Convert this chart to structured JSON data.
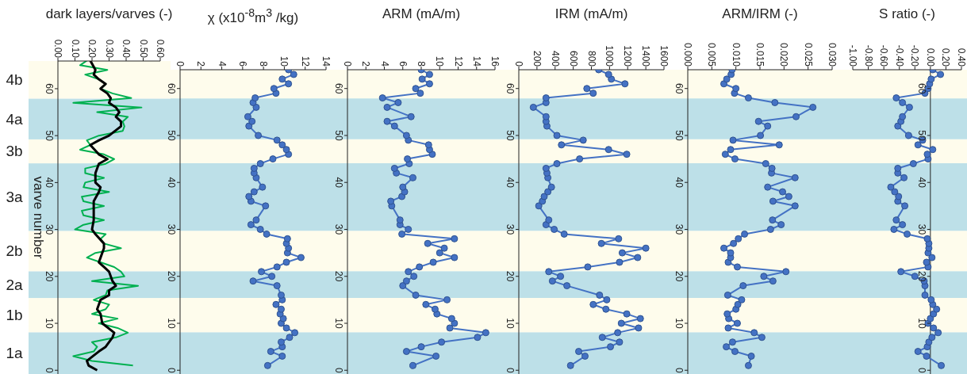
{
  "chart_data": [
    {
      "type": "line",
      "orientation": "horizontal",
      "xlabel": "dark layers/varves (-)",
      "ylabel": "varve number",
      "xlim": [
        0,
        0.6
      ],
      "xticks": [
        {
          "value": 0,
          "label": "0.00"
        },
        {
          "value": 0.1,
          "label": "0.10"
        },
        {
          "value": 0.2,
          "label": "0.20"
        },
        {
          "value": 0.3,
          "label": "0.30"
        },
        {
          "value": 0.4,
          "label": "0.40"
        },
        {
          "value": 0.5,
          "label": "0.50"
        },
        {
          "value": 0.6,
          "label": "0.60"
        }
      ],
      "ylim": [
        -0.8,
        65.9
      ],
      "yticks": [
        0,
        10,
        20,
        30,
        40,
        50,
        60
      ],
      "marker": "none",
      "bands": [
        {
          "axis": "y",
          "from": -0.8,
          "to": 8.1,
          "label": "1a",
          "color": "#bde0e8"
        },
        {
          "axis": "y",
          "from": 8.1,
          "to": 15.4,
          "label": "1b",
          "color": "#fefcec"
        },
        {
          "axis": "y",
          "from": 15.4,
          "to": 21.1,
          "label": "2a",
          "color": "#bde0e8"
        },
        {
          "axis": "y",
          "from": 21.1,
          "to": 29.7,
          "label": "2b",
          "color": "#fefcec"
        },
        {
          "axis": "y",
          "from": 29.7,
          "to": 44.1,
          "label": "3a",
          "color": "#bde0e8"
        },
        {
          "axis": "y",
          "from": 44.1,
          "to": 49.2,
          "label": "3b",
          "color": "#fefcec"
        },
        {
          "axis": "y",
          "from": 49.2,
          "to": 57.9,
          "label": "4a",
          "color": "#bde0e8"
        },
        {
          "axis": "y",
          "from": 57.9,
          "to": 65.9,
          "label": "4b",
          "color": "#fefcec"
        }
      ],
      "series": [
        {
          "color": "#00b050",
          "x": [
            1,
            2,
            3,
            4,
            5,
            6,
            7,
            8,
            9,
            10,
            11,
            12,
            13,
            14,
            15,
            16,
            17,
            18,
            19,
            20,
            21,
            22,
            23,
            24,
            25,
            26,
            27,
            28,
            29,
            30,
            31,
            32,
            33,
            34,
            35,
            36,
            37,
            38,
            39,
            40,
            41,
            42,
            43,
            44,
            45,
            46,
            47,
            48,
            49,
            50,
            51,
            52,
            53,
            54,
            55,
            56,
            57,
            58,
            59,
            60,
            61,
            62,
            63,
            64,
            65,
            66
          ],
          "values": [
            0.44,
            0.2,
            0.09,
            0.21,
            0.23,
            0.2,
            0.34,
            0.41,
            0.35,
            0.24,
            0.35,
            0.2,
            0.28,
            0.3,
            0.21,
            0.28,
            0.29,
            0.47,
            0.2,
            0.39,
            0.37,
            0.33,
            0.25,
            0.17,
            0.22,
            0.37,
            0.27,
            0.25,
            0.28,
            0.1,
            0.15,
            0.27,
            0.15,
            0.14,
            0.27,
            0.15,
            0.14,
            0.3,
            0.15,
            0.16,
            0.27,
            0.16,
            0.16,
            0.28,
            0.33,
            0.27,
            0.13,
            0.19,
            0.17,
            0.24,
            0.38,
            0.39,
            0.38,
            0.41,
            0.23,
            0.49,
            0.09,
            0.43,
            0.32,
            0.25,
            0.28,
            0.24,
            0.16,
            0.29,
            0.13,
            0.17
          ]
        },
        {
          "color": "#000000",
          "x": [
            0,
            1,
            2,
            4,
            5,
            7,
            8,
            10,
            12,
            13,
            15,
            16,
            17,
            18,
            19,
            21,
            22,
            23,
            24,
            26,
            27,
            29,
            30,
            32,
            36,
            38,
            39,
            40,
            42,
            44,
            45,
            46,
            48,
            49,
            50,
            52,
            53,
            54,
            55,
            56,
            57,
            58,
            59,
            60,
            61,
            62,
            63,
            64,
            66
          ],
          "values": [
            0.23,
            0.18,
            0.17,
            0.24,
            0.28,
            0.32,
            0.33,
            0.26,
            0.25,
            0.23,
            0.25,
            0.3,
            0.3,
            0.34,
            0.32,
            0.3,
            0.27,
            0.24,
            0.25,
            0.27,
            0.27,
            0.22,
            0.2,
            0.21,
            0.21,
            0.24,
            0.25,
            0.22,
            0.22,
            0.24,
            0.29,
            0.24,
            0.19,
            0.24,
            0.3,
            0.37,
            0.37,
            0.34,
            0.36,
            0.34,
            0.3,
            0.31,
            0.29,
            0.25,
            0.28,
            0.24,
            0.21,
            0.22,
            0.19
          ]
        }
      ]
    },
    {
      "type": "line",
      "orientation": "horizontal",
      "xlabel": "χ (x10$^{-8}$m$^{3}$ /kg)",
      "xlim": [
        0,
        14
      ],
      "xticks": [
        0,
        2,
        4,
        6,
        8,
        10,
        12,
        14
      ],
      "ylim": [
        -0.8,
        64
      ],
      "yticks": [
        0,
        10,
        20,
        30,
        40,
        50,
        60
      ],
      "marker": "circle",
      "bands": [
        {
          "axis": "y",
          "from": -0.8,
          "to": 8.1,
          "color": "#bde0e8"
        },
        {
          "axis": "y",
          "from": 8.1,
          "to": 15.4,
          "color": "#fefcec"
        },
        {
          "axis": "y",
          "from": 15.4,
          "to": 21.1,
          "color": "#bde0e8"
        },
        {
          "axis": "y",
          "from": 21.1,
          "to": 29.7,
          "color": "#fefcec"
        },
        {
          "axis": "y",
          "from": 29.7,
          "to": 44.1,
          "color": "#bde0e8"
        },
        {
          "axis": "y",
          "from": 44.1,
          "to": 49.2,
          "color": "#fefcec"
        },
        {
          "axis": "y",
          "from": 49.2,
          "to": 57.9,
          "color": "#bde0e8"
        },
        {
          "axis": "y",
          "from": 57.9,
          "to": 64,
          "color": "#fefcec"
        }
      ],
      "series": [
        {
          "color": "#4472c4",
          "x": [
            1,
            3,
            4,
            5,
            6,
            7,
            8,
            9,
            10,
            11,
            12,
            13,
            14,
            15,
            16,
            18,
            19,
            20,
            21,
            22,
            23,
            24,
            25,
            26,
            27,
            28,
            29,
            30,
            31,
            32,
            35,
            36,
            37,
            38,
            39,
            41,
            42,
            43,
            44,
            45,
            46,
            47,
            48,
            49,
            50,
            52,
            53,
            54,
            56,
            57,
            58,
            59,
            60,
            61,
            62,
            63,
            64
          ],
          "values": [
            8.4,
            9.8,
            8.7,
            9.8,
            9.7,
            10.5,
            11.0,
            10.2,
            9.7,
            9.9,
            9.6,
            9.7,
            9.2,
            9.8,
            9.7,
            9.3,
            7.0,
            8.8,
            7.8,
            9.3,
            10.2,
            11.6,
            10.3,
            10.4,
            10.2,
            10.3,
            8.3,
            7.7,
            6.8,
            7.3,
            8.2,
            6.8,
            6.6,
            7.1,
            7.9,
            7.3,
            7.1,
            7.1,
            7.7,
            8.9,
            10.4,
            10.2,
            9.8,
            9.3,
            7.5,
            6.6,
            6.9,
            6.5,
            7.3,
            7.0,
            7.2,
            9.2,
            9.0,
            10.4,
            9.8,
            10.9,
            10.4
          ]
        }
      ]
    },
    {
      "type": "line",
      "orientation": "horizontal",
      "xlabel": "ARM (mA/m)",
      "xlim": [
        0,
        16
      ],
      "xticks": [
        0,
        2,
        4,
        6,
        8,
        10,
        12,
        14,
        16
      ],
      "ylim": [
        -0.8,
        64
      ],
      "yticks": [
        0,
        10,
        20,
        30,
        40,
        50,
        60
      ],
      "marker": "circle",
      "bands": [
        {
          "axis": "y",
          "from": -0.8,
          "to": 8.1,
          "color": "#bde0e8"
        },
        {
          "axis": "y",
          "from": 8.1,
          "to": 15.4,
          "color": "#fefcec"
        },
        {
          "axis": "y",
          "from": 15.4,
          "to": 21.1,
          "color": "#bde0e8"
        },
        {
          "axis": "y",
          "from": 21.1,
          "to": 29.7,
          "color": "#fefcec"
        },
        {
          "axis": "y",
          "from": 29.7,
          "to": 44.1,
          "color": "#bde0e8"
        },
        {
          "axis": "y",
          "from": 44.1,
          "to": 49.2,
          "color": "#fefcec"
        },
        {
          "axis": "y",
          "from": 49.2,
          "to": 57.9,
          "color": "#bde0e8"
        },
        {
          "axis": "y",
          "from": 57.9,
          "to": 64,
          "color": "#fefcec"
        }
      ],
      "series": [
        {
          "color": "#4472c4",
          "x": [
            1,
            3,
            4,
            5,
            6,
            7,
            8,
            9,
            10,
            11,
            12,
            13,
            14,
            15,
            16,
            18,
            19,
            20,
            21,
            22,
            23,
            24,
            25,
            26,
            27,
            28,
            29,
            30,
            31,
            32,
            35,
            36,
            37,
            38,
            39,
            41,
            42,
            43,
            44,
            45,
            46,
            47,
            48,
            49,
            50,
            52,
            53,
            54,
            56,
            57,
            58,
            59,
            60,
            61,
            62,
            63,
            64
          ],
          "values": [
            7.1,
            9.6,
            6.4,
            8.0,
            10.2,
            14.1,
            15.0,
            11.1,
            11.6,
            11.3,
            9.7,
            9.5,
            8.5,
            10.8,
            7.4,
            6.0,
            6.4,
            7.2,
            6.6,
            7.8,
            9.3,
            11.6,
            10.0,
            10.5,
            8.7,
            11.6,
            5.9,
            6.6,
            5.7,
            5.7,
            4.8,
            4.7,
            5.9,
            6.2,
            6.0,
            7.1,
            5.3,
            5.1,
            6.7,
            6.5,
            9.2,
            8.9,
            8.8,
            6.6,
            6.4,
            5.1,
            4.3,
            6.9,
            4.3,
            5.5,
            3.8,
            7.9,
            7.4,
            8.9,
            8.1,
            8.9,
            8.0
          ]
        }
      ]
    },
    {
      "type": "line",
      "orientation": "horizontal",
      "xlabel": "IRM (mA/m)",
      "xlim": [
        0,
        1600
      ],
      "xticks": [
        0,
        200,
        400,
        600,
        800,
        1000,
        1200,
        1400,
        1600
      ],
      "ylim": [
        -0.8,
        64
      ],
      "yticks": [
        0,
        10,
        20,
        30,
        40,
        50,
        60
      ],
      "marker": "circle",
      "bands": [
        {
          "axis": "y",
          "from": -0.8,
          "to": 8.1,
          "color": "#bde0e8"
        },
        {
          "axis": "y",
          "from": 8.1,
          "to": 15.4,
          "color": "#fefcec"
        },
        {
          "axis": "y",
          "from": 15.4,
          "to": 21.1,
          "color": "#bde0e8"
        },
        {
          "axis": "y",
          "from": 21.1,
          "to": 29.7,
          "color": "#fefcec"
        },
        {
          "axis": "y",
          "from": 29.7,
          "to": 44.1,
          "color": "#bde0e8"
        },
        {
          "axis": "y",
          "from": 44.1,
          "to": 49.2,
          "color": "#fefcec"
        },
        {
          "axis": "y",
          "from": 49.2,
          "to": 57.9,
          "color": "#bde0e8"
        },
        {
          "axis": "y",
          "from": 57.9,
          "to": 64,
          "color": "#fefcec"
        }
      ],
      "series": [
        {
          "color": "#4472c4",
          "x": [
            1,
            3,
            4,
            5,
            6,
            7,
            8,
            9,
            10,
            11,
            12,
            13,
            14,
            15,
            16,
            18,
            19,
            20,
            21,
            22,
            23,
            24,
            25,
            26,
            27,
            28,
            29,
            30,
            31,
            32,
            35,
            36,
            37,
            38,
            39,
            41,
            42,
            43,
            44,
            45,
            46,
            47,
            48,
            49,
            50,
            52,
            53,
            54,
            56,
            57,
            58,
            59,
            60,
            61,
            62,
            63,
            64
          ],
          "values": [
            570,
            730,
            660,
            1010,
            1110,
            920,
            1090,
            1320,
            1130,
            1340,
            1190,
            960,
            820,
            970,
            890,
            530,
            370,
            460,
            330,
            760,
            1110,
            1310,
            1140,
            1400,
            910,
            1100,
            500,
            390,
            300,
            330,
            220,
            260,
            280,
            320,
            360,
            320,
            310,
            300,
            420,
            670,
            1190,
            990,
            470,
            710,
            420,
            310,
            300,
            300,
            160,
            300,
            300,
            820,
            750,
            1170,
            1020,
            990,
            880
          ]
        }
      ]
    },
    {
      "type": "line",
      "orientation": "horizontal",
      "xlabel": "ARM/IRM (-)",
      "xlim": [
        0,
        0.03
      ],
      "xticks": [
        {
          "value": 0,
          "label": "0.000"
        },
        {
          "value": 0.005,
          "label": "0.005"
        },
        {
          "value": 0.01,
          "label": "0.010"
        },
        {
          "value": 0.015,
          "label": "0.015"
        },
        {
          "value": 0.02,
          "label": "0.020"
        },
        {
          "value": 0.025,
          "label": "0.025"
        },
        {
          "value": 0.03,
          "label": "0.030"
        }
      ],
      "ylim": [
        -0.8,
        64
      ],
      "yticks": [
        0,
        10,
        20,
        30,
        40,
        50,
        60
      ],
      "marker": "circle",
      "bands": [
        {
          "axis": "y",
          "from": -0.8,
          "to": 8.1,
          "color": "#bde0e8"
        },
        {
          "axis": "y",
          "from": 8.1,
          "to": 15.4,
          "color": "#fefcec"
        },
        {
          "axis": "y",
          "from": 15.4,
          "to": 21.1,
          "color": "#bde0e8"
        },
        {
          "axis": "y",
          "from": 21.1,
          "to": 29.7,
          "color": "#fefcec"
        },
        {
          "axis": "y",
          "from": 29.7,
          "to": 44.1,
          "color": "#bde0e8"
        },
        {
          "axis": "y",
          "from": 44.1,
          "to": 49.2,
          "color": "#fefcec"
        },
        {
          "axis": "y",
          "from": 49.2,
          "to": 57.9,
          "color": "#bde0e8"
        },
        {
          "axis": "y",
          "from": 57.9,
          "to": 64,
          "color": "#fefcec"
        }
      ],
      "series": [
        {
          "color": "#4472c4",
          "x": [
            1,
            3,
            4,
            5,
            6,
            7,
            8,
            9,
            10,
            11,
            12,
            13,
            14,
            15,
            16,
            18,
            19,
            20,
            21,
            22,
            23,
            24,
            25,
            26,
            27,
            28,
            29,
            30,
            31,
            32,
            35,
            36,
            37,
            38,
            39,
            41,
            42,
            43,
            44,
            45,
            46,
            47,
            48,
            49,
            50,
            52,
            53,
            54,
            56,
            57,
            58,
            59,
            60,
            61,
            62,
            63,
            64
          ],
          "values": [
            0.0126,
            0.0132,
            0.0098,
            0.008,
            0.0093,
            0.0154,
            0.0138,
            0.0084,
            0.0103,
            0.0085,
            0.0082,
            0.01,
            0.0104,
            0.0112,
            0.0083,
            0.0115,
            0.0177,
            0.0158,
            0.0204,
            0.0103,
            0.0084,
            0.0089,
            0.0089,
            0.0075,
            0.0095,
            0.0105,
            0.0118,
            0.0172,
            0.0194,
            0.0176,
            0.0223,
            0.0177,
            0.021,
            0.0197,
            0.0166,
            0.0223,
            0.0174,
            0.0175,
            0.0162,
            0.0098,
            0.0078,
            0.0089,
            0.019,
            0.0094,
            0.0151,
            0.0166,
            0.0147,
            0.0225,
            0.026,
            0.0181,
            0.0126,
            0.0097,
            0.01,
            0.0075,
            0.0081,
            0.009,
            0.0092
          ]
        }
      ]
    },
    {
      "type": "line",
      "orientation": "horizontal",
      "xlabel": "S ratio (-)",
      "xlim": [
        -1,
        0.4
      ],
      "xticks": [
        {
          "value": -1,
          "label": "-1.00"
        },
        {
          "value": -0.8,
          "label": "-0.80"
        },
        {
          "value": -0.6,
          "label": "-0.60"
        },
        {
          "value": -0.4,
          "label": "-0.40"
        },
        {
          "value": -0.2,
          "label": "-0.20"
        },
        {
          "value": 0,
          "label": "0.00"
        },
        {
          "value": 0.2,
          "label": "0.20"
        },
        {
          "value": 0.4,
          "label": "0.40"
        }
      ],
      "ylim": [
        -0.8,
        64
      ],
      "yticks": [
        0,
        10,
        20,
        30,
        40,
        50,
        60
      ],
      "marker": "circle",
      "bands": [
        {
          "axis": "y",
          "from": -0.8,
          "to": 8.1,
          "color": "#bde0e8"
        },
        {
          "axis": "y",
          "from": 8.1,
          "to": 15.4,
          "color": "#fefcec"
        },
        {
          "axis": "y",
          "from": 15.4,
          "to": 21.1,
          "color": "#bde0e8"
        },
        {
          "axis": "y",
          "from": 21.1,
          "to": 29.7,
          "color": "#fefcec"
        },
        {
          "axis": "y",
          "from": 29.7,
          "to": 44.1,
          "color": "#bde0e8"
        },
        {
          "axis": "y",
          "from": 44.1,
          "to": 49.2,
          "color": "#fefcec"
        },
        {
          "axis": "y",
          "from": 49.2,
          "to": 57.9,
          "color": "#bde0e8"
        },
        {
          "axis": "y",
          "from": 57.9,
          "to": 64,
          "color": "#fefcec"
        }
      ],
      "series": [
        {
          "color": "#4472c4",
          "x": [
            1,
            3,
            4,
            5,
            6,
            7,
            8,
            9,
            10,
            11,
            12,
            13,
            14,
            15,
            16,
            18,
            19,
            20,
            21,
            22,
            23,
            24,
            25,
            26,
            27,
            28,
            29,
            30,
            31,
            32,
            35,
            36,
            37,
            38,
            39,
            41,
            42,
            43,
            44,
            45,
            46,
            47,
            48,
            49,
            50,
            52,
            53,
            54,
            56,
            57,
            58,
            59,
            60,
            61,
            62,
            63,
            64
          ],
          "values": [
            0.14,
            -0.05,
            -0.16,
            -0.04,
            -0.02,
            0.02,
            0.1,
            0.04,
            -0.03,
            0.0,
            0.04,
            0.08,
            0.03,
            0.01,
            -0.07,
            -0.07,
            -0.08,
            -0.2,
            -0.38,
            -0.03,
            -0.05,
            0.02,
            -0.03,
            -0.02,
            -0.02,
            -0.04,
            -0.3,
            -0.47,
            -0.36,
            -0.44,
            -0.33,
            -0.42,
            -0.41,
            -0.46,
            -0.51,
            -0.34,
            -0.42,
            -0.42,
            -0.22,
            -0.03,
            -0.04,
            0.03,
            -0.16,
            -0.1,
            -0.28,
            -0.42,
            -0.38,
            -0.36,
            -0.27,
            -0.36,
            -0.44,
            -0.07,
            -0.03,
            -0.01,
            0.01,
            0.13,
            0.03
          ]
        }
      ]
    }
  ]
}
